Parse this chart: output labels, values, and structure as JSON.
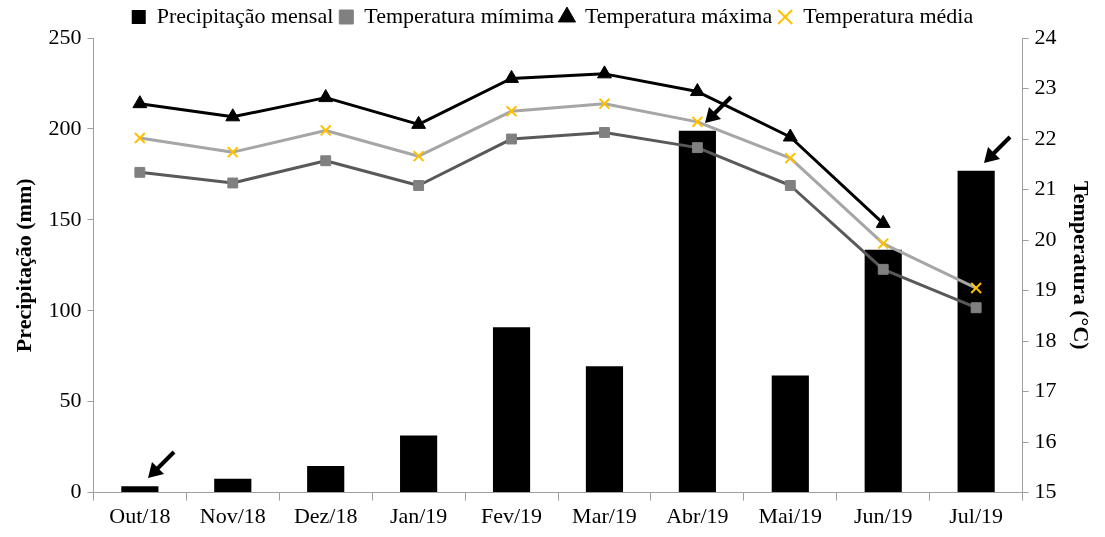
{
  "chart_data": {
    "type": "bar",
    "categories": [
      "Out/18",
      "Nov/18",
      "Dez/18",
      "Jan/19",
      "Fev/19",
      "Mar/19",
      "Abr/19",
      "Mai/19",
      "Jun/19",
      "Jul/19"
    ],
    "series": [
      {
        "name": "Precipitação mensal",
        "color": "#000000",
        "values": [
          3.5,
          7.6,
          14.6,
          31.4,
          91,
          69.5,
          199,
          64.4,
          133.6,
          177
        ]
      },
      {
        "name": "Temperatura mímima",
        "type": "line",
        "axis": "y2",
        "marker": "square",
        "color": "#595959",
        "values": [
          21.34,
          21.13,
          21.57,
          21.08,
          22.0,
          22.13,
          21.83,
          21.08,
          19.42,
          18.66
        ]
      },
      {
        "name": "Temperatura máxima",
        "type": "line",
        "axis": "y2",
        "marker": "triangle",
        "color": "#000000",
        "values": [
          22.7,
          22.44,
          22.82,
          22.29,
          23.2,
          23.29,
          22.94,
          22.04,
          20.33,
          null
        ]
      },
      {
        "name": "Temperatura média",
        "type": "line",
        "axis": "y2",
        "marker": "cross",
        "color": "#a6a6a6",
        "values": [
          22.02,
          21.74,
          22.17,
          21.66,
          22.55,
          22.7,
          22.34,
          21.62,
          19.93,
          19.05
        ]
      }
    ],
    "ylabel": "Precipitação (mm)",
    "y2label": "Temperatura (°C)",
    "ylim": [
      0,
      250
    ],
    "yticks": [
      0,
      50,
      100,
      150,
      200,
      250
    ],
    "y2lim": [
      15,
      24
    ],
    "y2ticks": [
      15,
      16,
      17,
      18,
      19,
      20,
      21,
      22,
      23,
      24
    ],
    "grid": false,
    "legend": "top",
    "line_style": "solid"
  }
}
